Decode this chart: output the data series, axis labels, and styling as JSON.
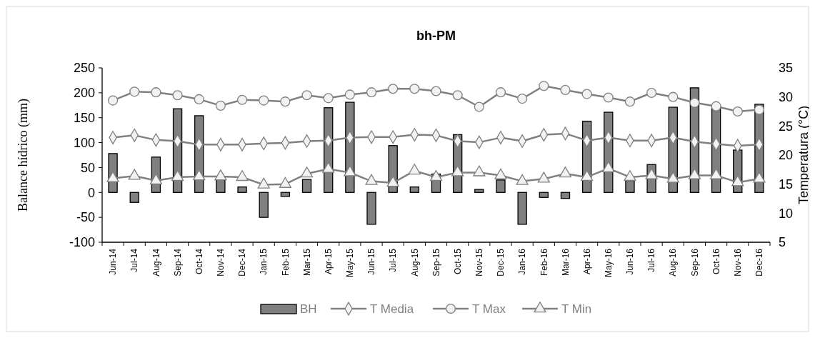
{
  "chart_data": {
    "type": "bar",
    "title": "bh-PM",
    "ylabel": "Balance hídrico (mm)",
    "y2label": "Temperatura (°C)",
    "categories": [
      "Jun-14",
      "Jul-14",
      "Aug-14",
      "Sep-14",
      "Oct-14",
      "Nov-14",
      "Dec-14",
      "Jan-15",
      "Feb-15",
      "Mar-15",
      "Apr-15",
      "May-15",
      "Jun-15",
      "Jul-15",
      "Aug-15",
      "Sep-15",
      "Oct-15",
      "Nov-15",
      "Dec-15",
      "Jan-16",
      "Feb-16",
      "Mar-16",
      "Apr-16",
      "May-16",
      "Jun-16",
      "Jul-16",
      "Aug-16",
      "Sep-16",
      "Oct-16",
      "Nov-16",
      "Dec-16"
    ],
    "ylim": [
      -100,
      250
    ],
    "yticks": [
      -100,
      -50,
      0,
      50,
      100,
      150,
      200,
      250
    ],
    "y2lim": [
      5,
      35
    ],
    "y2ticks": [
      5,
      10,
      15,
      20,
      25,
      30,
      35
    ],
    "grid": false,
    "legend": "bottom",
    "series": [
      {
        "name": "BH",
        "color": "#808080",
        "values": [
          78,
          -20,
          71,
          168,
          154,
          26,
          11,
          -50,
          -8,
          26,
          170,
          181,
          -64,
          94,
          11,
          37,
          116,
          6,
          25,
          -64,
          -10,
          -12,
          143,
          161,
          24,
          56,
          171,
          210,
          170,
          85,
          177
        ]
      },
      {
        "name": "T Media",
        "type": "line",
        "axis": "y2",
        "marker": "diamond",
        "color": "#808080",
        "values": [
          23.0,
          23.4,
          22.6,
          22.4,
          21.8,
          21.8,
          21.8,
          22.0,
          22.1,
          22.4,
          22.5,
          23.0,
          23.1,
          23.1,
          23.5,
          23.4,
          22.4,
          22.2,
          23.0,
          22.4,
          23.5,
          23.7,
          22.5,
          23.0,
          22.5,
          22.5,
          23.0,
          22.3,
          21.9,
          21.6,
          21.8
        ]
      },
      {
        "name": "T Max",
        "type": "line",
        "axis": "y2",
        "marker": "circle",
        "color": "#808080",
        "values": [
          29.4,
          30.9,
          30.8,
          30.3,
          29.6,
          28.5,
          29.5,
          29.4,
          29.2,
          30.3,
          29.8,
          30.4,
          30.8,
          31.4,
          31.4,
          31.0,
          30.3,
          28.3,
          30.8,
          29.7,
          31.9,
          31.2,
          30.5,
          29.9,
          29.2,
          30.7,
          30.0,
          29.0,
          28.4,
          27.5,
          27.8
        ]
      },
      {
        "name": "T Min",
        "type": "line",
        "axis": "y2",
        "marker": "triangle",
        "color": "#808080",
        "values": [
          16.0,
          16.4,
          15.6,
          16.2,
          16.3,
          16.3,
          16.2,
          14.9,
          15.0,
          16.8,
          17.6,
          17.0,
          15.5,
          15.2,
          17.3,
          16.2,
          17.0,
          17.0,
          16.5,
          15.5,
          15.9,
          16.8,
          16.2,
          17.7,
          16.2,
          16.5,
          15.9,
          16.5,
          16.5,
          15.3,
          15.9
        ]
      }
    ]
  }
}
